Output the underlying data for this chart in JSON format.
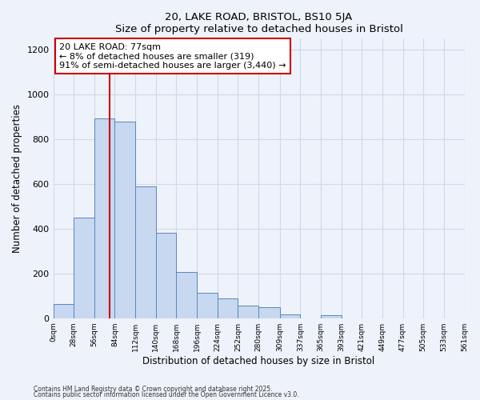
{
  "title": "20, LAKE ROAD, BRISTOL, BS10 5JA",
  "subtitle": "Size of property relative to detached houses in Bristol",
  "xlabel": "Distribution of detached houses by size in Bristol",
  "ylabel": "Number of detached properties",
  "bar_values": [
    65,
    450,
    895,
    880,
    590,
    380,
    205,
    115,
    90,
    55,
    48,
    18,
    0,
    15,
    0,
    0,
    0,
    0,
    0,
    0
  ],
  "bin_edges": [
    0,
    28,
    56,
    84,
    112,
    140,
    168,
    196,
    224,
    252,
    280,
    309,
    337,
    365,
    393,
    421,
    449,
    477,
    505,
    533,
    561
  ],
  "tick_labels": [
    "0sqm",
    "28sqm",
    "56sqm",
    "84sqm",
    "112sqm",
    "140sqm",
    "168sqm",
    "196sqm",
    "224sqm",
    "252sqm",
    "280sqm",
    "309sqm",
    "337sqm",
    "365sqm",
    "393sqm",
    "421sqm",
    "449sqm",
    "477sqm",
    "505sqm",
    "533sqm",
    "561sqm"
  ],
  "bar_color": "#c8d8f0",
  "bar_edge_color": "#5588bb",
  "property_line_x": 77,
  "property_line_color": "#cc0000",
  "annotation_line1": "20 LAKE ROAD: 77sqm",
  "annotation_line2": "← 8% of detached houses are smaller (319)",
  "annotation_line3": "91% of semi-detached houses are larger (3,440) →",
  "annotation_box_color": "#ffffff",
  "annotation_box_edge": "#cc0000",
  "ylim": [
    0,
    1250
  ],
  "yticks": [
    0,
    200,
    400,
    600,
    800,
    1000,
    1200
  ],
  "footnote1": "Contains HM Land Registry data © Crown copyright and database right 2025.",
  "footnote2": "Contains public sector information licensed under the Open Government Licence v3.0.",
  "background_color": "#eef2fa",
  "grid_color": "#d0d8e8"
}
